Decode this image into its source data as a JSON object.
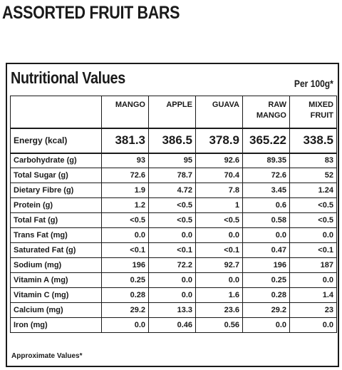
{
  "title": "ASSORTED FRUIT BARS",
  "panel": {
    "heading": "Nutritional Values",
    "per": "Per 100g*",
    "columns": [
      {
        "line1": "MANGO",
        "line2": ""
      },
      {
        "line1": "APPLE",
        "line2": ""
      },
      {
        "line1": "GUAVA",
        "line2": ""
      },
      {
        "line1": "RAW",
        "line2": "MANGO"
      },
      {
        "line1": "MIXED",
        "line2": "FRUIT"
      }
    ],
    "rows": [
      {
        "label": "Energy (kcal)",
        "values": [
          "381.3",
          "386.5",
          "378.9",
          "365.22",
          "338.5"
        ]
      },
      {
        "label": "Carbohydrate (g)",
        "values": [
          "93",
          "95",
          "92.6",
          "89.35",
          "83"
        ]
      },
      {
        "label": "Total Sugar (g)",
        "values": [
          "72.6",
          "78.7",
          "70.4",
          "72.6",
          "52"
        ]
      },
      {
        "label": "Dietary Fibre (g)",
        "values": [
          "1.9",
          "4.72",
          "7.8",
          "3.45",
          "1.24"
        ]
      },
      {
        "label": "Protein (g)",
        "values": [
          "1.2",
          "<0.5",
          "1",
          "0.6",
          "<0.5"
        ]
      },
      {
        "label": "Total Fat (g)",
        "values": [
          "<0.5",
          "<0.5",
          "<0.5",
          "0.58",
          "<0.5"
        ]
      },
      {
        "label": "Trans Fat (mg)",
        "values": [
          "0.0",
          "0.0",
          "0.0",
          "0.0",
          "0.0"
        ]
      },
      {
        "label": "Saturated Fat (g)",
        "values": [
          "<0.1",
          "<0.1",
          "<0.1",
          "0.47",
          "<0.1"
        ]
      },
      {
        "label": "Sodium (mg)",
        "values": [
          "196",
          "72.2",
          "92.7",
          "196",
          "187"
        ]
      },
      {
        "label": "Vitamin A (mg)",
        "values": [
          "0.25",
          "0.0",
          "0.0",
          "0.25",
          "0.0"
        ]
      },
      {
        "label": "Vitamin C (mg)",
        "values": [
          "0.28",
          "0.0",
          "1.6",
          "0.28",
          "1.4"
        ]
      },
      {
        "label": "Calcium (mg)",
        "values": [
          "29.2",
          "13.3",
          "23.6",
          "29.2",
          "23"
        ]
      },
      {
        "label": "Iron (mg)",
        "values": [
          "0.0",
          "0.46",
          "0.56",
          "0.0",
          "0.0"
        ]
      }
    ],
    "footnote": "Approximate Values*"
  }
}
